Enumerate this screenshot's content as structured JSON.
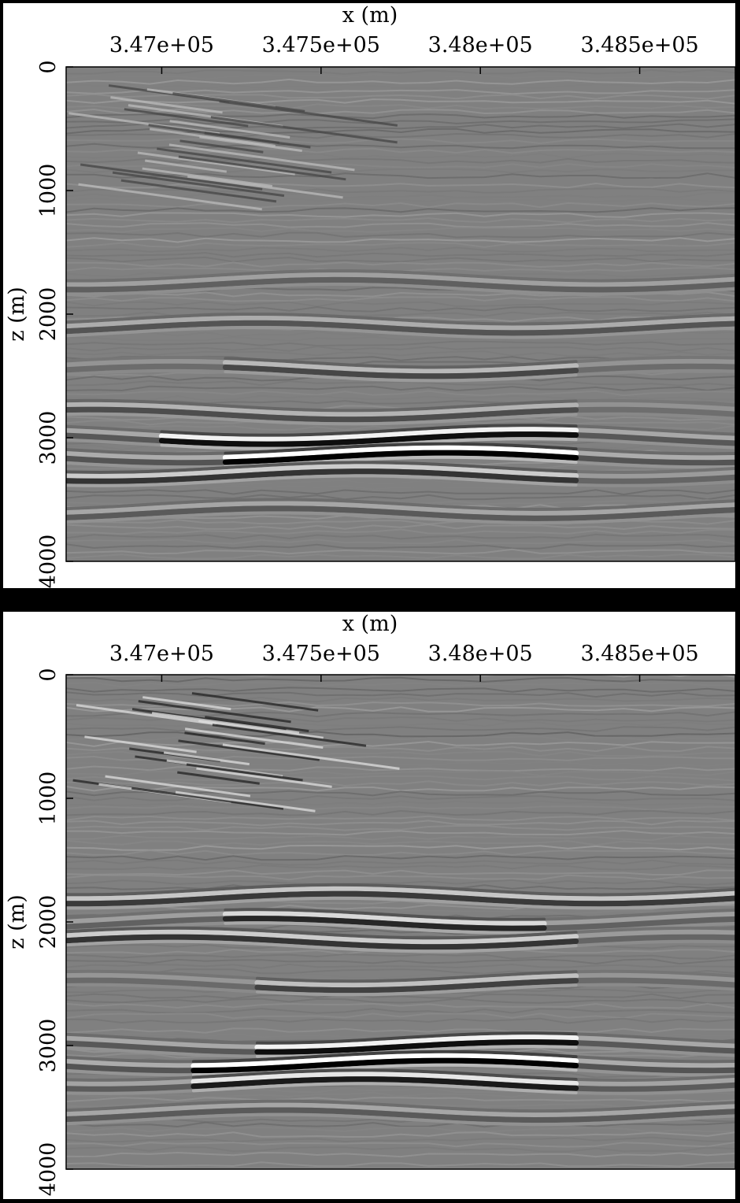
{
  "colors": {
    "frame": "#000000",
    "panel_background": "#ffffff",
    "seismic_zero": "#808080"
  },
  "chart_data": [
    {
      "type": "heatmap",
      "colormap": "grayscale",
      "xlabel": "x (m)",
      "ylabel": "z (m)",
      "xlim": [
        346700,
        348800
      ],
      "ylim": [
        0,
        4000
      ],
      "y_inverted": true,
      "x_ticks": [
        347000,
        347500,
        348000,
        348500
      ],
      "x_tick_labels": [
        "3.47e+05",
        "3.475e+05",
        "3.48e+05",
        "3.485e+05"
      ],
      "y_ticks": [
        0,
        1000,
        2000,
        3000,
        4000
      ],
      "y_tick_labels": [
        "0",
        "1000",
        "2000",
        "3000",
        "4000"
      ],
      "reflectors": [
        {
          "z": 1750,
          "x": [
            346700,
            348800
          ],
          "amplitude": 0.25
        },
        {
          "z": 2100,
          "x": [
            346700,
            348800
          ],
          "amplitude": 0.35
        },
        {
          "z": 2450,
          "x": [
            347200,
            348300
          ],
          "amplitude": 0.45
        },
        {
          "z": 2800,
          "x": [
            346700,
            348300
          ],
          "amplitude": 0.4
        },
        {
          "z": 3000,
          "x": [
            347000,
            348300
          ],
          "amplitude": 0.9
        },
        {
          "z": 3150,
          "x": [
            347200,
            348300
          ],
          "amplitude": 1.0
        },
        {
          "z": 3300,
          "x": [
            346700,
            348300
          ],
          "amplitude": 0.6
        },
        {
          "z": 3600,
          "x": [
            346700,
            348800
          ],
          "amplitude": 0.3
        }
      ]
    },
    {
      "type": "heatmap",
      "colormap": "grayscale",
      "xlabel": "x (m)",
      "ylabel": "z (m)",
      "xlim": [
        346700,
        348800
      ],
      "ylim": [
        0,
        4000
      ],
      "y_inverted": true,
      "x_ticks": [
        347000,
        347500,
        348000,
        348500
      ],
      "x_tick_labels": [
        "3.47e+05",
        "3.475e+05",
        "3.48e+05",
        "3.485e+05"
      ],
      "y_ticks": [
        0,
        1000,
        2000,
        3000,
        4000
      ],
      "y_tick_labels": [
        "0",
        "1000",
        "2000",
        "3000",
        "4000"
      ],
      "reflectors": [
        {
          "z": 1800,
          "x": [
            346700,
            348800
          ],
          "amplitude": 0.55
        },
        {
          "z": 2000,
          "x": [
            347200,
            348200
          ],
          "amplitude": 0.7
        },
        {
          "z": 2150,
          "x": [
            346700,
            348300
          ],
          "amplitude": 0.6
        },
        {
          "z": 2500,
          "x": [
            347300,
            348300
          ],
          "amplitude": 0.5
        },
        {
          "z": 3000,
          "x": [
            347300,
            348300
          ],
          "amplitude": 0.9
        },
        {
          "z": 3150,
          "x": [
            347100,
            348300
          ],
          "amplitude": 1.0
        },
        {
          "z": 3300,
          "x": [
            347100,
            348300
          ],
          "amplitude": 0.8
        },
        {
          "z": 3550,
          "x": [
            346700,
            348800
          ],
          "amplitude": 0.3
        }
      ]
    }
  ]
}
